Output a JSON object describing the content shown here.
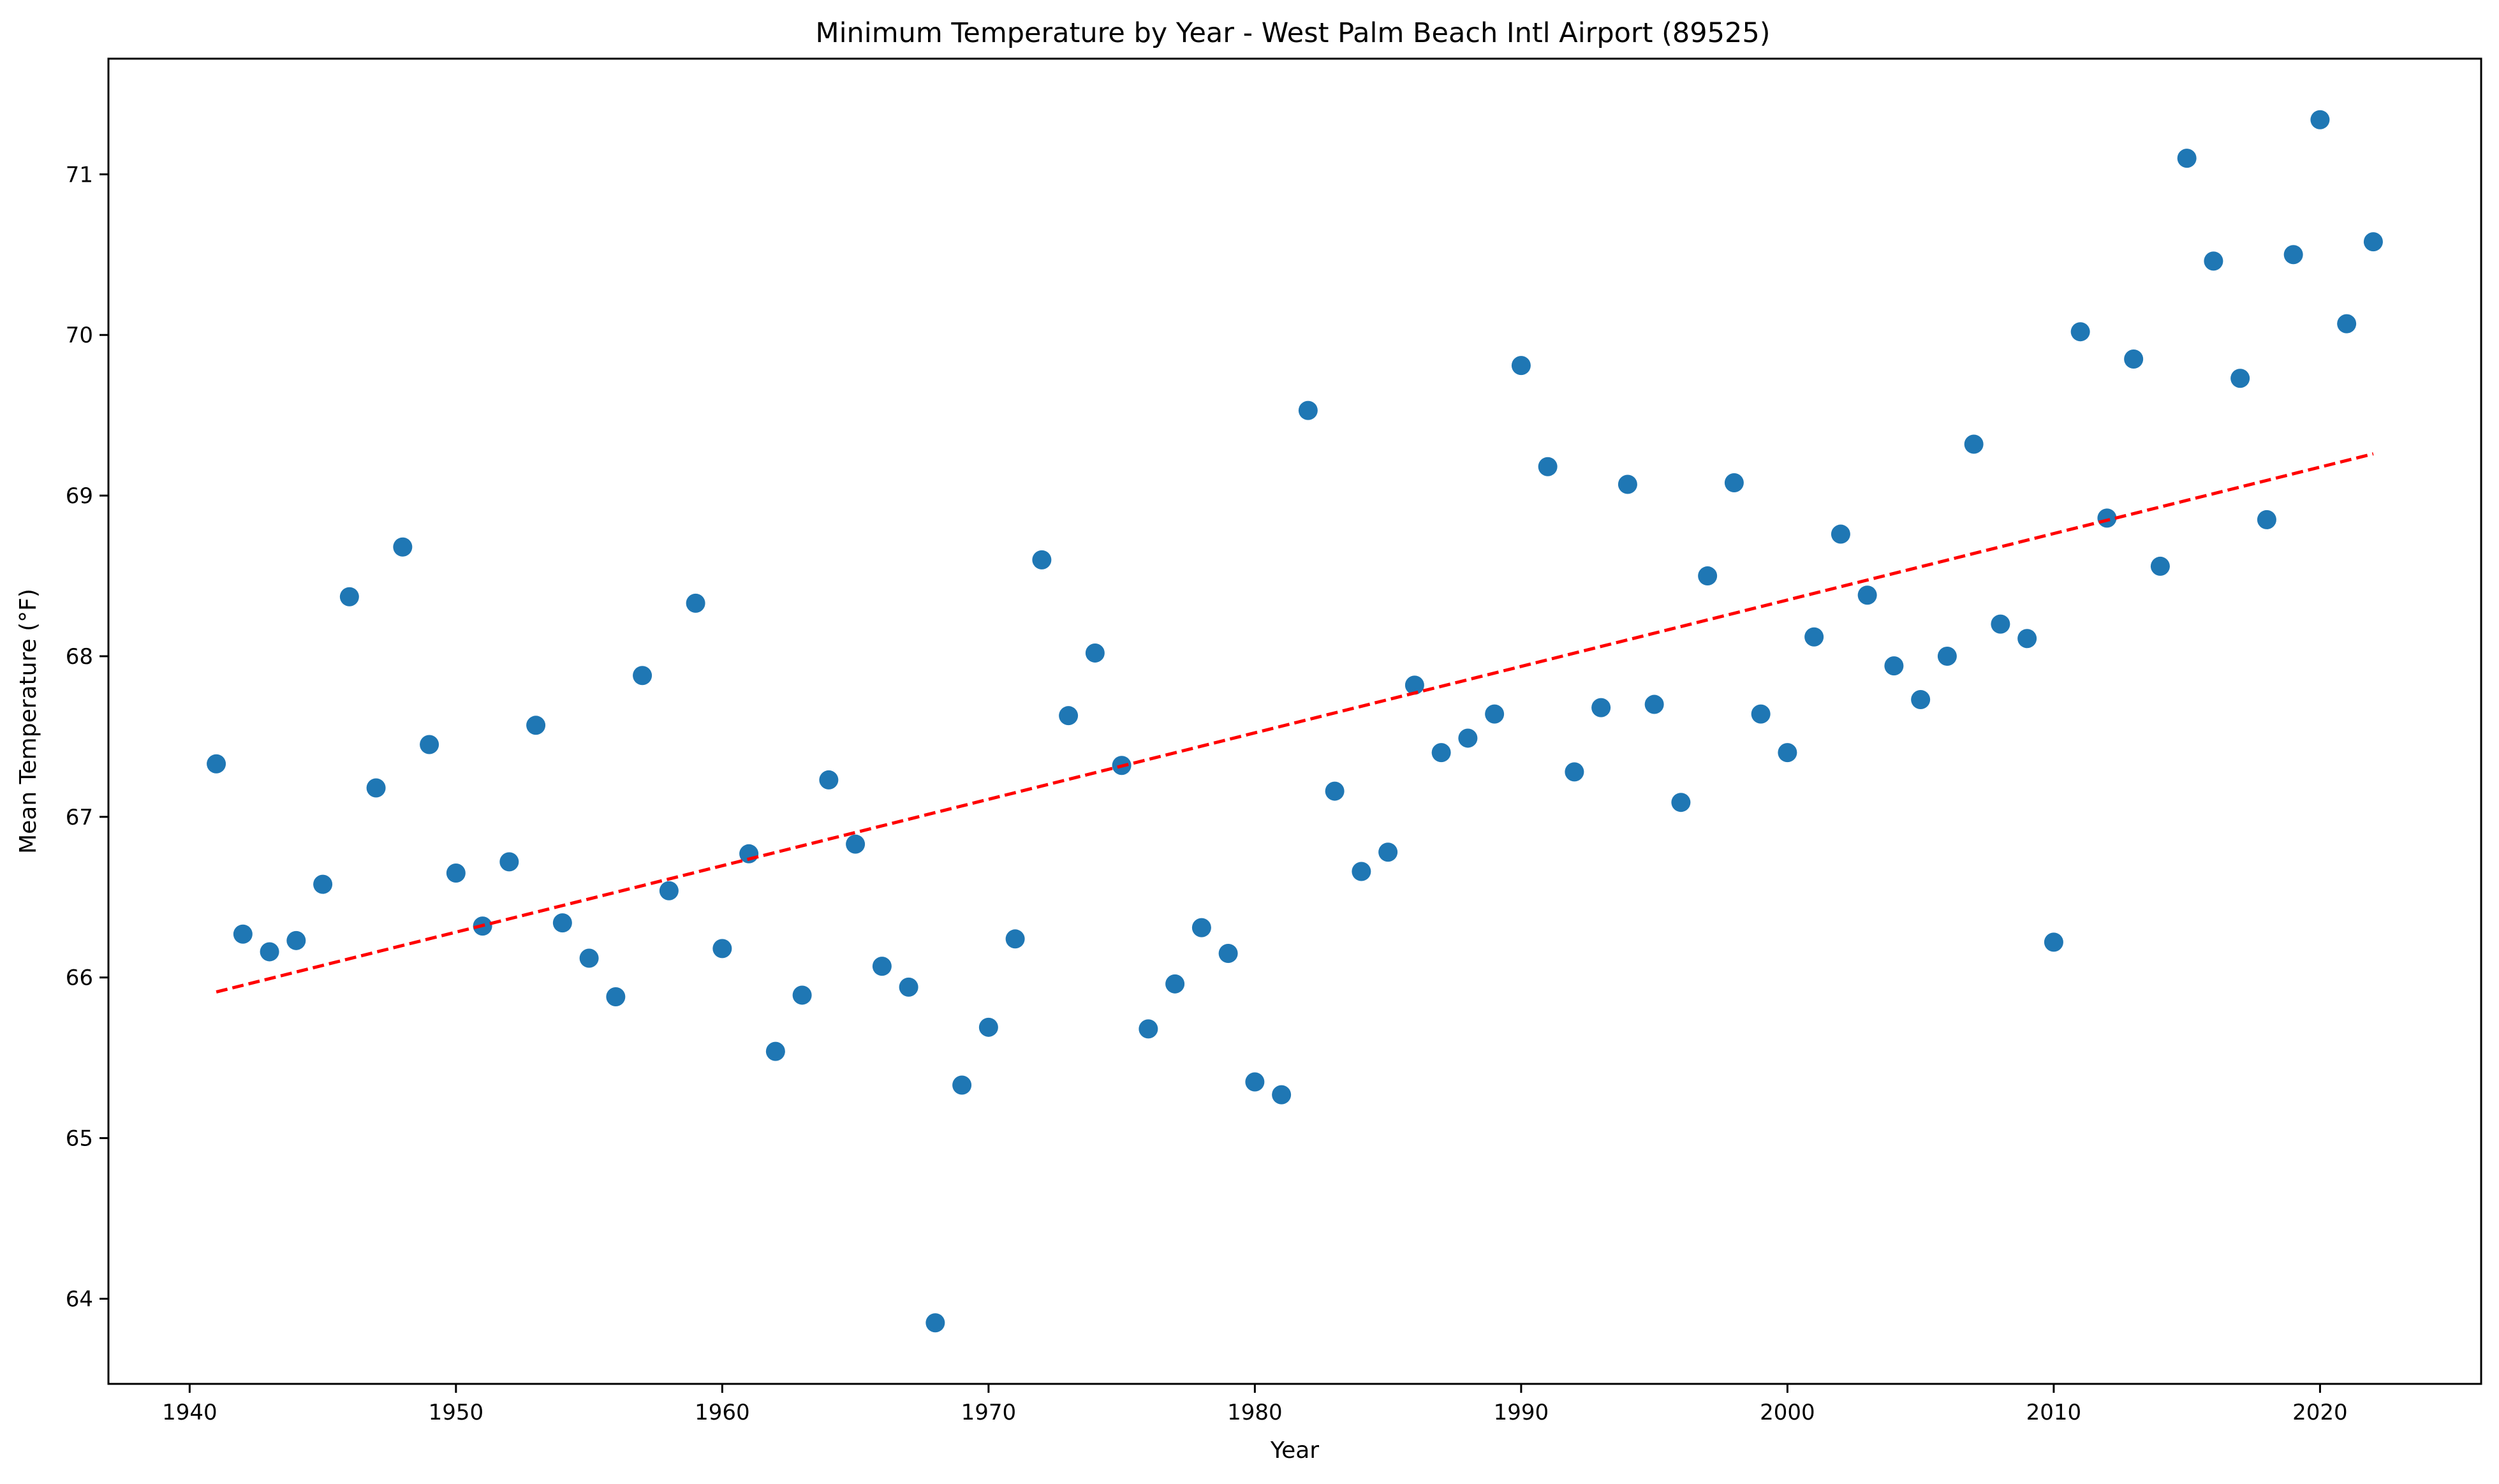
{
  "chart_data": {
    "type": "scatter",
    "title": "Minimum Temperature by Year - West Palm Beach Intl Airport (89525)",
    "xlabel": "Year",
    "ylabel": "Mean Temperature (°F)",
    "xlim": [
      1936.95,
      2026.05
    ],
    "ylim": [
      63.47,
      71.72
    ],
    "x_ticks": [
      1940,
      1950,
      1960,
      1970,
      1980,
      1990,
      2000,
      2010,
      2020
    ],
    "y_ticks": [
      64,
      65,
      66,
      67,
      68,
      69,
      70,
      71
    ],
    "grid": false,
    "legend": "none",
    "point_color": "#1f77b4",
    "trend_color": "#ff0000",
    "series": [
      {
        "x": [
          1941,
          1942,
          1943,
          1944,
          1945,
          1946,
          1947,
          1948,
          1949,
          1950,
          1951,
          1952,
          1953,
          1954,
          1955,
          1956,
          1957,
          1958,
          1959,
          1960,
          1961,
          1962,
          1963,
          1964,
          1965,
          1966,
          1967,
          1968,
          1969,
          1970,
          1971,
          1972,
          1973,
          1974,
          1975,
          1976,
          1977,
          1978,
          1979,
          1980,
          1981,
          1982,
          1983,
          1984,
          1985,
          1986,
          1987,
          1988,
          1989,
          1990,
          1991,
          1992,
          1993,
          1994,
          1995,
          1996,
          1997,
          1998,
          1999,
          2000,
          2001,
          2002,
          2003,
          2004,
          2005,
          2006,
          2007,
          2008,
          2009,
          2010,
          2011,
          2012,
          2013,
          2014,
          2015,
          2016,
          2017,
          2018,
          2019,
          2020,
          2021,
          2022
        ],
        "y": [
          67.33,
          66.27,
          66.16,
          66.23,
          66.58,
          68.37,
          67.18,
          68.68,
          67.45,
          66.65,
          66.32,
          66.72,
          67.57,
          66.34,
          66.12,
          65.88,
          67.88,
          66.54,
          68.33,
          66.18,
          66.77,
          65.54,
          65.89,
          67.23,
          66.83,
          66.07,
          65.94,
          63.85,
          65.33,
          65.69,
          66.24,
          68.6,
          67.63,
          68.02,
          67.32,
          65.68,
          65.96,
          66.31,
          66.15,
          65.35,
          65.27,
          69.53,
          67.16,
          66.66,
          66.78,
          67.82,
          67.4,
          67.49,
          67.64,
          69.81,
          69.18,
          67.28,
          67.68,
          69.07,
          67.7,
          67.09,
          68.5,
          69.08,
          67.64,
          67.4,
          68.12,
          68.76,
          68.38,
          67.94,
          67.73,
          68.0,
          69.32,
          68.2,
          68.11,
          66.22,
          70.02,
          68.86,
          69.85,
          68.56,
          71.1,
          70.46,
          69.73,
          68.85,
          70.5,
          71.34,
          70.07,
          70.58
        ]
      }
    ],
    "trendline": {
      "x": [
        1941,
        2022
      ],
      "y": [
        65.91,
        69.26
      ]
    }
  }
}
